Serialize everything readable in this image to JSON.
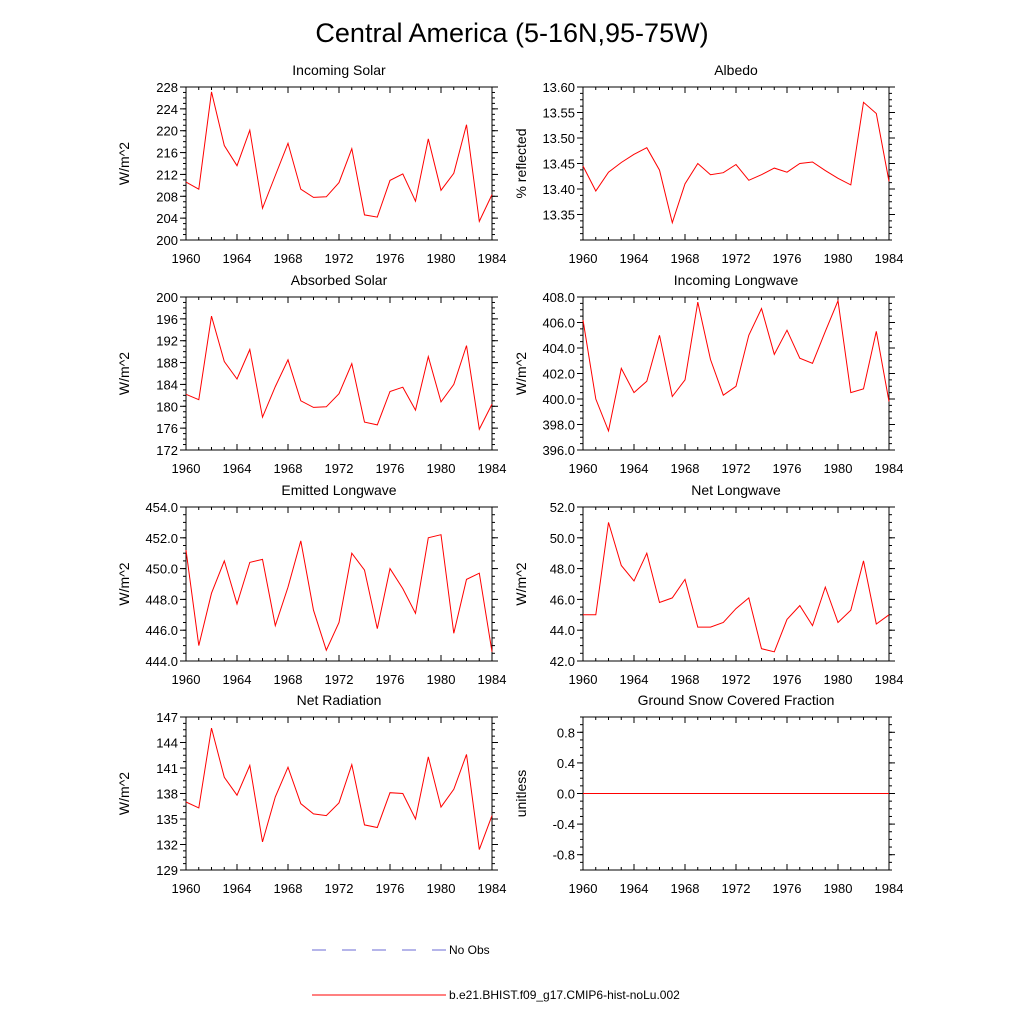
{
  "title": "Central America (5-16N,95-75W)",
  "legend": {
    "obs_label": "No Obs",
    "model_label": "b.e21.BHIST.f09_g17.CMIP6-hist-noLu.002",
    "obs_color": "#6b6bd6",
    "model_color": "#ff0000"
  },
  "colors": {
    "series": "#ff0000",
    "axis": "#000000",
    "background": "#ffffff"
  },
  "chart_data": [
    {
      "type": "line",
      "title": "Incoming Solar",
      "ylabel": "W/m^2",
      "xlabel": "",
      "x": [
        1960,
        1961,
        1962,
        1963,
        1964,
        1965,
        1966,
        1967,
        1968,
        1969,
        1970,
        1971,
        1972,
        1973,
        1974,
        1975,
        1976,
        1977,
        1978,
        1979,
        1980,
        1981,
        1982,
        1983,
        1984
      ],
      "xlim": [
        1960,
        1984
      ],
      "xticks": [
        1960,
        1964,
        1968,
        1972,
        1976,
        1980,
        1984
      ],
      "ylim": [
        200,
        228
      ],
      "yticks": [
        200,
        204,
        208,
        212,
        216,
        220,
        224,
        228
      ],
      "ytick_labels": [
        "200",
        "204",
        "208",
        "212",
        "216",
        "220",
        "224",
        "228"
      ],
      "series": [
        {
          "values": [
            210.6,
            209.3,
            227.1,
            217.3,
            213.6,
            220.1,
            205.8,
            211.8,
            217.7,
            209.3,
            207.8,
            207.9,
            210.5,
            216.7,
            204.6,
            204.2,
            210.9,
            212.1,
            207.1,
            218.5,
            209.1,
            212.2,
            221.1,
            203.4,
            208.3
          ]
        }
      ],
      "grid": false
    },
    {
      "type": "line",
      "title": "Albedo",
      "ylabel": "% reflected",
      "xlabel": "",
      "x": [
        1960,
        1961,
        1962,
        1963,
        1964,
        1965,
        1966,
        1967,
        1968,
        1969,
        1970,
        1971,
        1972,
        1973,
        1974,
        1975,
        1976,
        1977,
        1978,
        1979,
        1980,
        1981,
        1982,
        1983,
        1984
      ],
      "xlim": [
        1960,
        1984
      ],
      "xticks": [
        1960,
        1964,
        1968,
        1972,
        1976,
        1980,
        1984
      ],
      "ylim": [
        13.3,
        13.6
      ],
      "yticks": [
        13.35,
        13.4,
        13.45,
        13.5,
        13.55,
        13.6
      ],
      "ytick_labels": [
        "13.35",
        "13.40",
        "13.45",
        "13.50",
        "13.55",
        "13.60"
      ],
      "series": [
        {
          "values": [
            13.445,
            13.396,
            13.433,
            13.452,
            13.468,
            13.481,
            13.437,
            13.334,
            13.41,
            13.45,
            13.428,
            13.432,
            13.448,
            13.417,
            13.428,
            13.441,
            13.433,
            13.45,
            13.453,
            13.436,
            13.421,
            13.408,
            13.57,
            13.548,
            13.415
          ]
        }
      ],
      "grid": false
    },
    {
      "type": "line",
      "title": "Absorbed Solar",
      "ylabel": "W/m^2",
      "xlabel": "",
      "x": [
        1960,
        1961,
        1962,
        1963,
        1964,
        1965,
        1966,
        1967,
        1968,
        1969,
        1970,
        1971,
        1972,
        1973,
        1974,
        1975,
        1976,
        1977,
        1978,
        1979,
        1980,
        1981,
        1982,
        1983,
        1984
      ],
      "xlim": [
        1960,
        1984
      ],
      "xticks": [
        1960,
        1964,
        1968,
        1972,
        1976,
        1980,
        1984
      ],
      "ylim": [
        172,
        200
      ],
      "yticks": [
        172,
        176,
        180,
        184,
        188,
        192,
        196,
        200
      ],
      "ytick_labels": [
        "172",
        "176",
        "180",
        "184",
        "188",
        "192",
        "196",
        "200"
      ],
      "series": [
        {
          "values": [
            182.2,
            181.2,
            196.5,
            188.2,
            185.0,
            190.4,
            178.0,
            183.6,
            188.5,
            181.0,
            179.8,
            179.9,
            182.3,
            187.8,
            177.1,
            176.6,
            182.7,
            183.5,
            179.3,
            189.1,
            180.8,
            184.0,
            191.1,
            175.8,
            180.4
          ]
        }
      ],
      "grid": false
    },
    {
      "type": "line",
      "title": "Incoming Longwave",
      "ylabel": "W/m^2",
      "xlabel": "",
      "x": [
        1960,
        1961,
        1962,
        1963,
        1964,
        1965,
        1966,
        1967,
        1968,
        1969,
        1970,
        1971,
        1972,
        1973,
        1974,
        1975,
        1976,
        1977,
        1978,
        1979,
        1980,
        1981,
        1982,
        1983,
        1984
      ],
      "xlim": [
        1960,
        1984
      ],
      "xticks": [
        1960,
        1964,
        1968,
        1972,
        1976,
        1980,
        1984
      ],
      "ylim": [
        396.0,
        408.0
      ],
      "yticks": [
        396,
        398,
        400,
        402,
        404,
        406,
        408
      ],
      "ytick_labels": [
        "396.0",
        "398.0",
        "400.0",
        "402.0",
        "404.0",
        "406.0",
        "408.0"
      ],
      "series": [
        {
          "values": [
            406.2,
            400.0,
            397.5,
            402.4,
            400.5,
            401.4,
            405.0,
            400.2,
            401.5,
            407.6,
            403.1,
            400.3,
            401.0,
            405.0,
            407.1,
            403.5,
            405.4,
            403.2,
            402.8,
            405.3,
            407.7,
            400.5,
            400.8,
            405.3,
            399.8
          ]
        }
      ],
      "grid": false
    },
    {
      "type": "line",
      "title": "Emitted Longwave",
      "ylabel": "W/m^2",
      "xlabel": "",
      "x": [
        1960,
        1961,
        1962,
        1963,
        1964,
        1965,
        1966,
        1967,
        1968,
        1969,
        1970,
        1971,
        1972,
        1973,
        1974,
        1975,
        1976,
        1977,
        1978,
        1979,
        1980,
        1981,
        1982,
        1983,
        1984
      ],
      "xlim": [
        1960,
        1984
      ],
      "xticks": [
        1960,
        1964,
        1968,
        1972,
        1976,
        1980,
        1984
      ],
      "ylim": [
        444.0,
        454.0
      ],
      "yticks": [
        444,
        446,
        448,
        450,
        452,
        454
      ],
      "ytick_labels": [
        "444.0",
        "446.0",
        "448.0",
        "450.0",
        "452.0",
        "454.0"
      ],
      "series": [
        {
          "values": [
            451.2,
            445.0,
            448.4,
            450.5,
            447.7,
            450.4,
            450.6,
            446.3,
            448.8,
            451.8,
            447.3,
            444.7,
            446.5,
            451.0,
            449.9,
            446.1,
            450.0,
            448.7,
            447.1,
            452.0,
            452.2,
            445.8,
            449.3,
            449.7,
            444.6
          ]
        }
      ],
      "grid": false
    },
    {
      "type": "line",
      "title": "Net Longwave",
      "ylabel": "W/m^2",
      "xlabel": "",
      "x": [
        1960,
        1961,
        1962,
        1963,
        1964,
        1965,
        1966,
        1967,
        1968,
        1969,
        1970,
        1971,
        1972,
        1973,
        1974,
        1975,
        1976,
        1977,
        1978,
        1979,
        1980,
        1981,
        1982,
        1983,
        1984
      ],
      "xlim": [
        1960,
        1984
      ],
      "xticks": [
        1960,
        1964,
        1968,
        1972,
        1976,
        1980,
        1984
      ],
      "ylim": [
        42.0,
        52.0
      ],
      "yticks": [
        42,
        44,
        46,
        48,
        50,
        52
      ],
      "ytick_labels": [
        "42.0",
        "44.0",
        "46.0",
        "48.0",
        "50.0",
        "52.0"
      ],
      "series": [
        {
          "values": [
            45.0,
            45.0,
            51.0,
            48.2,
            47.2,
            49.0,
            45.8,
            46.1,
            47.3,
            44.2,
            44.2,
            44.5,
            45.4,
            46.1,
            42.8,
            42.6,
            44.7,
            45.6,
            44.3,
            46.8,
            44.5,
            45.3,
            48.5,
            44.4,
            45.0
          ]
        }
      ],
      "grid": false
    },
    {
      "type": "line",
      "title": "Net Radiation",
      "ylabel": "W/m^2",
      "xlabel": "",
      "x": [
        1960,
        1961,
        1962,
        1963,
        1964,
        1965,
        1966,
        1967,
        1968,
        1969,
        1970,
        1971,
        1972,
        1973,
        1974,
        1975,
        1976,
        1977,
        1978,
        1979,
        1980,
        1981,
        1982,
        1983,
        1984
      ],
      "xlim": [
        1960,
        1984
      ],
      "xticks": [
        1960,
        1964,
        1968,
        1972,
        1976,
        1980,
        1984
      ],
      "ylim": [
        129,
        147
      ],
      "yticks": [
        129,
        132,
        135,
        138,
        141,
        144,
        147
      ],
      "ytick_labels": [
        "129",
        "132",
        "135",
        "138",
        "141",
        "144",
        "147"
      ],
      "series": [
        {
          "values": [
            137.0,
            136.3,
            145.7,
            139.9,
            137.8,
            141.3,
            132.3,
            137.6,
            141.1,
            136.8,
            135.6,
            135.4,
            136.9,
            141.4,
            134.3,
            134.0,
            138.1,
            138.0,
            135.0,
            142.3,
            136.4,
            138.5,
            142.6,
            131.4,
            135.4
          ]
        }
      ],
      "grid": false
    },
    {
      "type": "line",
      "title": "Ground Snow Covered Fraction",
      "ylabel": "unitless",
      "xlabel": "",
      "x": [
        1960,
        1961,
        1962,
        1963,
        1964,
        1965,
        1966,
        1967,
        1968,
        1969,
        1970,
        1971,
        1972,
        1973,
        1974,
        1975,
        1976,
        1977,
        1978,
        1979,
        1980,
        1981,
        1982,
        1983,
        1984
      ],
      "xlim": [
        1960,
        1984
      ],
      "xticks": [
        1960,
        1964,
        1968,
        1972,
        1976,
        1980,
        1984
      ],
      "ylim": [
        -1.0,
        1.0
      ],
      "yticks": [
        -0.8,
        -0.4,
        0.0,
        0.4,
        0.8
      ],
      "ytick_labels": [
        "-0.8",
        "-0.4",
        "0.0",
        "0.4",
        "0.8"
      ],
      "series": [
        {
          "values": [
            0,
            0,
            0,
            0,
            0,
            0,
            0,
            0,
            0,
            0,
            0,
            0,
            0,
            0,
            0,
            0,
            0,
            0,
            0,
            0,
            0,
            0,
            0,
            0,
            0
          ]
        }
      ],
      "grid": false
    }
  ]
}
